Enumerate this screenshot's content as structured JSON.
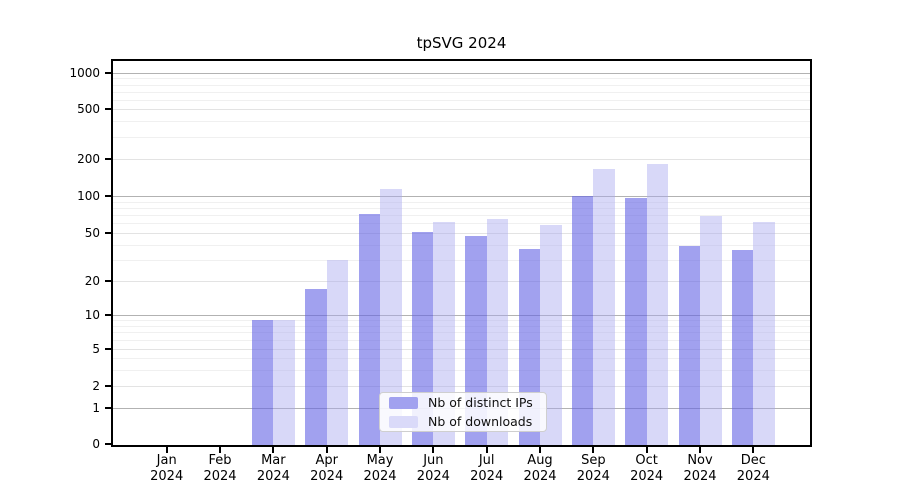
{
  "title": "tpSVG 2024",
  "chart_data": {
    "type": "bar",
    "title": "tpSVG 2024",
    "categories": [
      "Jan 2024",
      "Feb 2024",
      "Mar 2024",
      "Apr 2024",
      "May 2024",
      "Jun 2024",
      "Jul 2024",
      "Aug 2024",
      "Sep 2024",
      "Oct 2024",
      "Nov 2024",
      "Dec 2024"
    ],
    "series": [
      {
        "name": "Nb of distinct IPs",
        "color": "#a1a1ef",
        "values": [
          0,
          0,
          9,
          17,
          72,
          51,
          47,
          37,
          100,
          96,
          39,
          36
        ]
      },
      {
        "name": "Nb of downloads",
        "color": "#dadaf9",
        "values": [
          0,
          0,
          9,
          30,
          113,
          61,
          65,
          58,
          165,
          181,
          69,
          61
        ]
      }
    ],
    "xlabel": "",
    "ylabel": "",
    "yscale": "symlog",
    "yticks": [
      0,
      1,
      2,
      5,
      10,
      20,
      50,
      100,
      200,
      500,
      1000
    ],
    "ylim": [
      0,
      1200
    ],
    "grid": true,
    "legend_position": "bottom-center"
  },
  "colors": {
    "bar_dark": "#a1a1ef",
    "bar_light": "#dadaf9",
    "grid_major": "#b2b2b2",
    "grid_minor": "#eeeeee",
    "axis": "#000000"
  }
}
